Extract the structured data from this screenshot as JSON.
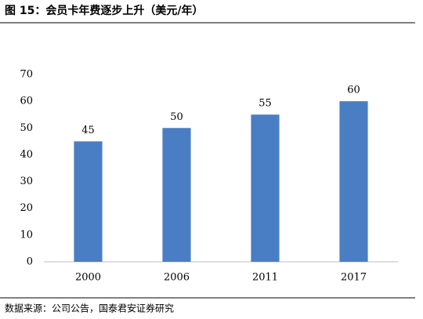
{
  "chart_data": {
    "type": "bar",
    "title": "图 15：会员卡年费逐步上升（美元/年）",
    "categories": [
      "2000",
      "2006",
      "2011",
      "2017"
    ],
    "values": [
      45,
      50,
      55,
      60
    ],
    "color": "#4a7ec4",
    "ylim": [
      0,
      70
    ],
    "yticks": [
      0,
      10,
      20,
      30,
      40,
      50,
      60,
      70
    ],
    "grid": false,
    "source": "数据来源：公司公告，国泰君安证券研究"
  }
}
